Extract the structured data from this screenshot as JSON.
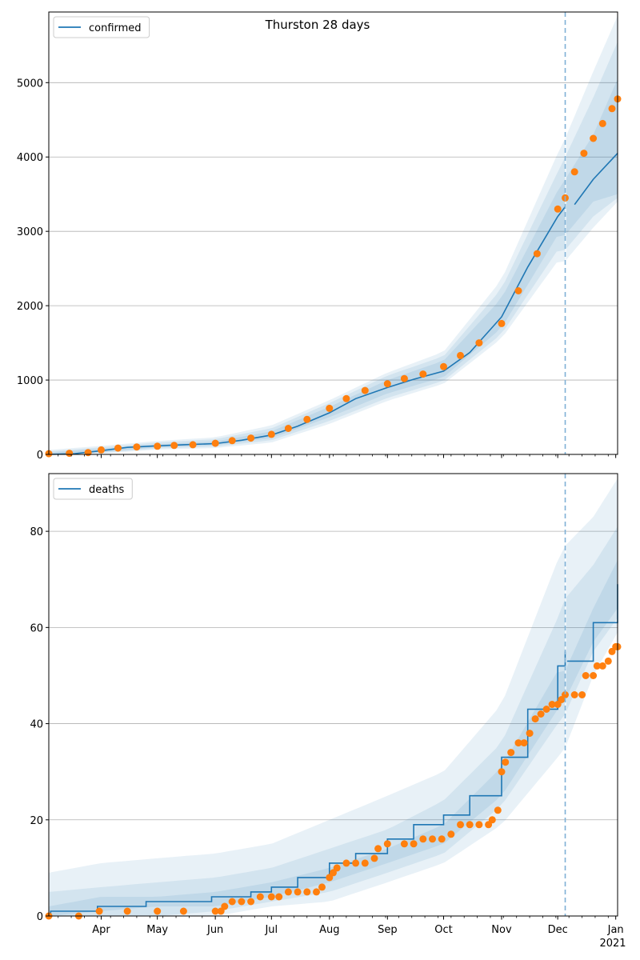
{
  "figure_title": "Thurston 28 days",
  "colors": {
    "model_line": "#1f77b4",
    "observed": "#ff7f0e",
    "band": "#1f77b4",
    "forecast_line": "#7fb1d6",
    "grid": "#b0b0b0"
  },
  "x_axis": {
    "date_start": "2020-03-04",
    "date_end": "2021-01-02",
    "tick_labels": [
      {
        "date": "2020-04-01",
        "label": "Apr"
      },
      {
        "date": "2020-05-01",
        "label": "May"
      },
      {
        "date": "2020-06-01",
        "label": "Jun"
      },
      {
        "date": "2020-07-01",
        "label": "Jul"
      },
      {
        "date": "2020-08-01",
        "label": "Aug"
      },
      {
        "date": "2020-09-01",
        "label": "Sep"
      },
      {
        "date": "2020-10-01",
        "label": "Oct"
      },
      {
        "date": "2020-11-01",
        "label": "Nov"
      },
      {
        "date": "2020-12-01",
        "label": "Dec"
      },
      {
        "date": "2021-01-01",
        "label": "Jan"
      }
    ],
    "year_label": "2021",
    "forecast_start": "2020-12-05"
  },
  "chart_data": [
    {
      "type": "line",
      "legend": "confirmed",
      "legend_position": "upper-left",
      "grid": "horizontal",
      "ylim": [
        0,
        5950
      ],
      "yticks": [
        0,
        1000,
        2000,
        3000,
        4000,
        5000
      ],
      "model": {
        "x": [
          "2020-03-04",
          "2020-03-18",
          "2020-04-01",
          "2020-04-15",
          "2020-05-01",
          "2020-05-15",
          "2020-06-01",
          "2020-06-15",
          "2020-07-01",
          "2020-07-15",
          "2020-08-01",
          "2020-08-15",
          "2020-09-01",
          "2020-09-15",
          "2020-10-01",
          "2020-10-15",
          "2020-11-01",
          "2020-11-15",
          "2020-12-01",
          "2020-12-05",
          "2020-12-10",
          "2020-12-20",
          "2021-01-02"
        ],
        "y": [
          0,
          10,
          50,
          95,
          115,
          130,
          145,
          190,
          260,
          380,
          560,
          750,
          900,
          1010,
          1120,
          1370,
          1850,
          2520,
          3200,
          3330,
          3360,
          3700,
          4050
        ]
      },
      "observed": {
        "x": [
          "2020-03-04",
          "2020-03-15",
          "2020-03-25",
          "2020-04-01",
          "2020-04-10",
          "2020-04-20",
          "2020-05-01",
          "2020-05-10",
          "2020-05-20",
          "2020-06-01",
          "2020-06-10",
          "2020-06-20",
          "2020-07-01",
          "2020-07-10",
          "2020-07-20",
          "2020-08-01",
          "2020-08-10",
          "2020-08-20",
          "2020-09-01",
          "2020-09-10",
          "2020-09-20",
          "2020-10-01",
          "2020-10-10",
          "2020-10-20",
          "2020-11-01",
          "2020-11-10",
          "2020-11-20",
          "2020-12-01",
          "2020-12-05",
          "2020-12-10",
          "2020-12-15",
          "2020-12-20",
          "2020-12-25",
          "2020-12-30",
          "2021-01-02"
        ],
        "y": [
          10,
          15,
          25,
          60,
          85,
          100,
          110,
          120,
          130,
          150,
          185,
          220,
          270,
          350,
          470,
          620,
          750,
          860,
          950,
          1020,
          1080,
          1180,
          1330,
          1500,
          1760,
          2200,
          2700,
          3300,
          3450,
          3800,
          4050,
          4250,
          4450,
          4650,
          4780
        ]
      },
      "bands": [
        {
          "x": [
            "2020-03-04",
            "2020-04-01",
            "2020-05-01",
            "2020-06-01",
            "2020-07-01",
            "2020-08-01",
            "2020-09-01",
            "2020-10-01",
            "2020-11-01",
            "2020-12-01",
            "2020-12-05",
            "2020-12-20",
            "2021-01-02"
          ],
          "lo": [
            0,
            30,
            95,
            125,
            220,
            500,
            820,
            1040,
            1700,
            2950,
            2950,
            3400,
            3500
          ],
          "hi": [
            25,
            75,
            135,
            175,
            310,
            640,
            1000,
            1260,
            2100,
            3550,
            3700,
            4300,
            5050
          ]
        },
        {
          "x": [
            "2020-03-04",
            "2020-04-01",
            "2020-05-01",
            "2020-06-01",
            "2020-07-01",
            "2020-08-01",
            "2020-09-01",
            "2020-10-01",
            "2020-11-01",
            "2020-12-01",
            "2020-12-05",
            "2020-12-20",
            "2021-01-02"
          ],
          "lo": [
            0,
            20,
            80,
            105,
            190,
            450,
            760,
            990,
            1620,
            2750,
            2750,
            3200,
            3450
          ],
          "hi": [
            40,
            95,
            160,
            205,
            350,
            690,
            1060,
            1320,
            2230,
            3800,
            4000,
            4800,
            5550
          ]
        },
        {
          "x": [
            "2020-03-04",
            "2020-04-01",
            "2020-05-01",
            "2020-06-01",
            "2020-07-01",
            "2020-08-01",
            "2020-09-01",
            "2020-10-01",
            "2020-11-01",
            "2020-12-01",
            "2020-12-05",
            "2020-12-20",
            "2021-01-02"
          ],
          "lo": [
            0,
            10,
            65,
            85,
            160,
            410,
            720,
            950,
            1560,
            2600,
            2600,
            3050,
            3400
          ],
          "hi": [
            60,
            115,
            180,
            230,
            390,
            730,
            1100,
            1380,
            2350,
            4050,
            4250,
            5150,
            5900
          ]
        }
      ]
    },
    {
      "type": "line",
      "legend": "deaths",
      "legend_position": "upper-left",
      "grid": "horizontal",
      "ylim": [
        0,
        92
      ],
      "yticks": [
        0,
        20,
        40,
        60,
        80
      ],
      "model": {
        "x": [
          "2020-03-04",
          "2020-03-05",
          "2020-03-30",
          "2020-04-25",
          "2020-05-30",
          "2020-06-20",
          "2020-07-01",
          "2020-07-15",
          "2020-08-01",
          "2020-08-15",
          "2020-09-01",
          "2020-09-15",
          "2020-10-01",
          "2020-10-15",
          "2020-11-01",
          "2020-11-15",
          "2020-12-01",
          "2020-12-05",
          "2020-12-06",
          "2020-12-20",
          "2021-01-02"
        ],
        "y": [
          0,
          1,
          2,
          3,
          4,
          5,
          6,
          8,
          11,
          13,
          16,
          19,
          21,
          25,
          33,
          43,
          52,
          55,
          53,
          61,
          69
        ]
      },
      "observed": {
        "x": [
          "2020-03-04",
          "2020-03-20",
          "2020-03-31",
          "2020-04-15",
          "2020-05-01",
          "2020-05-15",
          "2020-06-01",
          "2020-06-04",
          "2020-06-06",
          "2020-06-10",
          "2020-06-15",
          "2020-06-20",
          "2020-06-25",
          "2020-07-01",
          "2020-07-05",
          "2020-07-10",
          "2020-07-15",
          "2020-07-20",
          "2020-07-25",
          "2020-07-28",
          "2020-08-01",
          "2020-08-03",
          "2020-08-05",
          "2020-08-10",
          "2020-08-15",
          "2020-08-20",
          "2020-08-25",
          "2020-08-27",
          "2020-09-01",
          "2020-09-10",
          "2020-09-15",
          "2020-09-20",
          "2020-09-25",
          "2020-09-30",
          "2020-10-05",
          "2020-10-10",
          "2020-10-15",
          "2020-10-20",
          "2020-10-25",
          "2020-10-27",
          "2020-10-30",
          "2020-11-01",
          "2020-11-03",
          "2020-11-06",
          "2020-11-10",
          "2020-11-13",
          "2020-11-16",
          "2020-11-19",
          "2020-11-22",
          "2020-11-25",
          "2020-11-28",
          "2020-12-01",
          "2020-12-03",
          "2020-12-05",
          "2020-12-10",
          "2020-12-14",
          "2020-12-16",
          "2020-12-20",
          "2020-12-22",
          "2020-12-25",
          "2020-12-28",
          "2020-12-30",
          "2021-01-01",
          "2021-01-02"
        ],
        "y": [
          0,
          0,
          1,
          1,
          1,
          1,
          1,
          1,
          2,
          3,
          3,
          3,
          4,
          4,
          4,
          5,
          5,
          5,
          5,
          6,
          8,
          9,
          10,
          11,
          11,
          11,
          12,
          14,
          15,
          15,
          15,
          16,
          16,
          16,
          17,
          19,
          19,
          19,
          19,
          20,
          22,
          30,
          32,
          34,
          36,
          36,
          38,
          41,
          42,
          43,
          44,
          44,
          45,
          46,
          46,
          46,
          50,
          50,
          52,
          52,
          53,
          55,
          56,
          56
        ]
      },
      "bands": [
        {
          "x": [
            "2020-03-04",
            "2020-04-01",
            "2020-05-01",
            "2020-06-01",
            "2020-07-01",
            "2020-08-01",
            "2020-09-01",
            "2020-10-01",
            "2020-11-01",
            "2020-12-01",
            "2020-12-05",
            "2020-12-20",
            "2021-01-02"
          ],
          "lo": [
            0,
            1,
            2,
            2,
            4,
            7,
            11,
            15,
            25,
            43,
            45,
            57,
            64
          ],
          "hi": [
            2,
            4,
            4,
            5,
            7,
            10,
            14,
            19,
            31,
            51,
            51,
            64,
            74
          ]
        },
        {
          "x": [
            "2020-03-04",
            "2020-04-01",
            "2020-05-01",
            "2020-06-01",
            "2020-07-01",
            "2020-08-01",
            "2020-09-01",
            "2020-10-01",
            "2020-11-01",
            "2020-12-01",
            "2020-12-05",
            "2020-12-20",
            "2021-01-02"
          ],
          "lo": [
            0,
            0,
            0,
            1,
            3,
            5,
            9,
            13,
            23,
            40,
            42,
            55,
            62
          ],
          "hi": [
            5,
            6,
            7,
            8,
            10,
            14,
            18,
            24,
            36,
            62,
            66,
            73,
            81
          ]
        },
        {
          "x": [
            "2020-03-04",
            "2020-04-01",
            "2020-05-01",
            "2020-06-01",
            "2020-07-01",
            "2020-08-01",
            "2020-09-01",
            "2020-10-01",
            "2020-11-01",
            "2020-12-01",
            "2020-12-05",
            "2020-12-20",
            "2021-01-02"
          ],
          "lo": [
            0,
            0,
            0,
            0,
            2,
            3,
            7,
            11,
            19,
            33,
            35,
            50,
            59
          ],
          "hi": [
            9,
            11,
            12,
            13,
            15,
            20,
            25,
            30,
            44,
            74,
            77,
            83,
            91
          ]
        }
      ]
    }
  ]
}
